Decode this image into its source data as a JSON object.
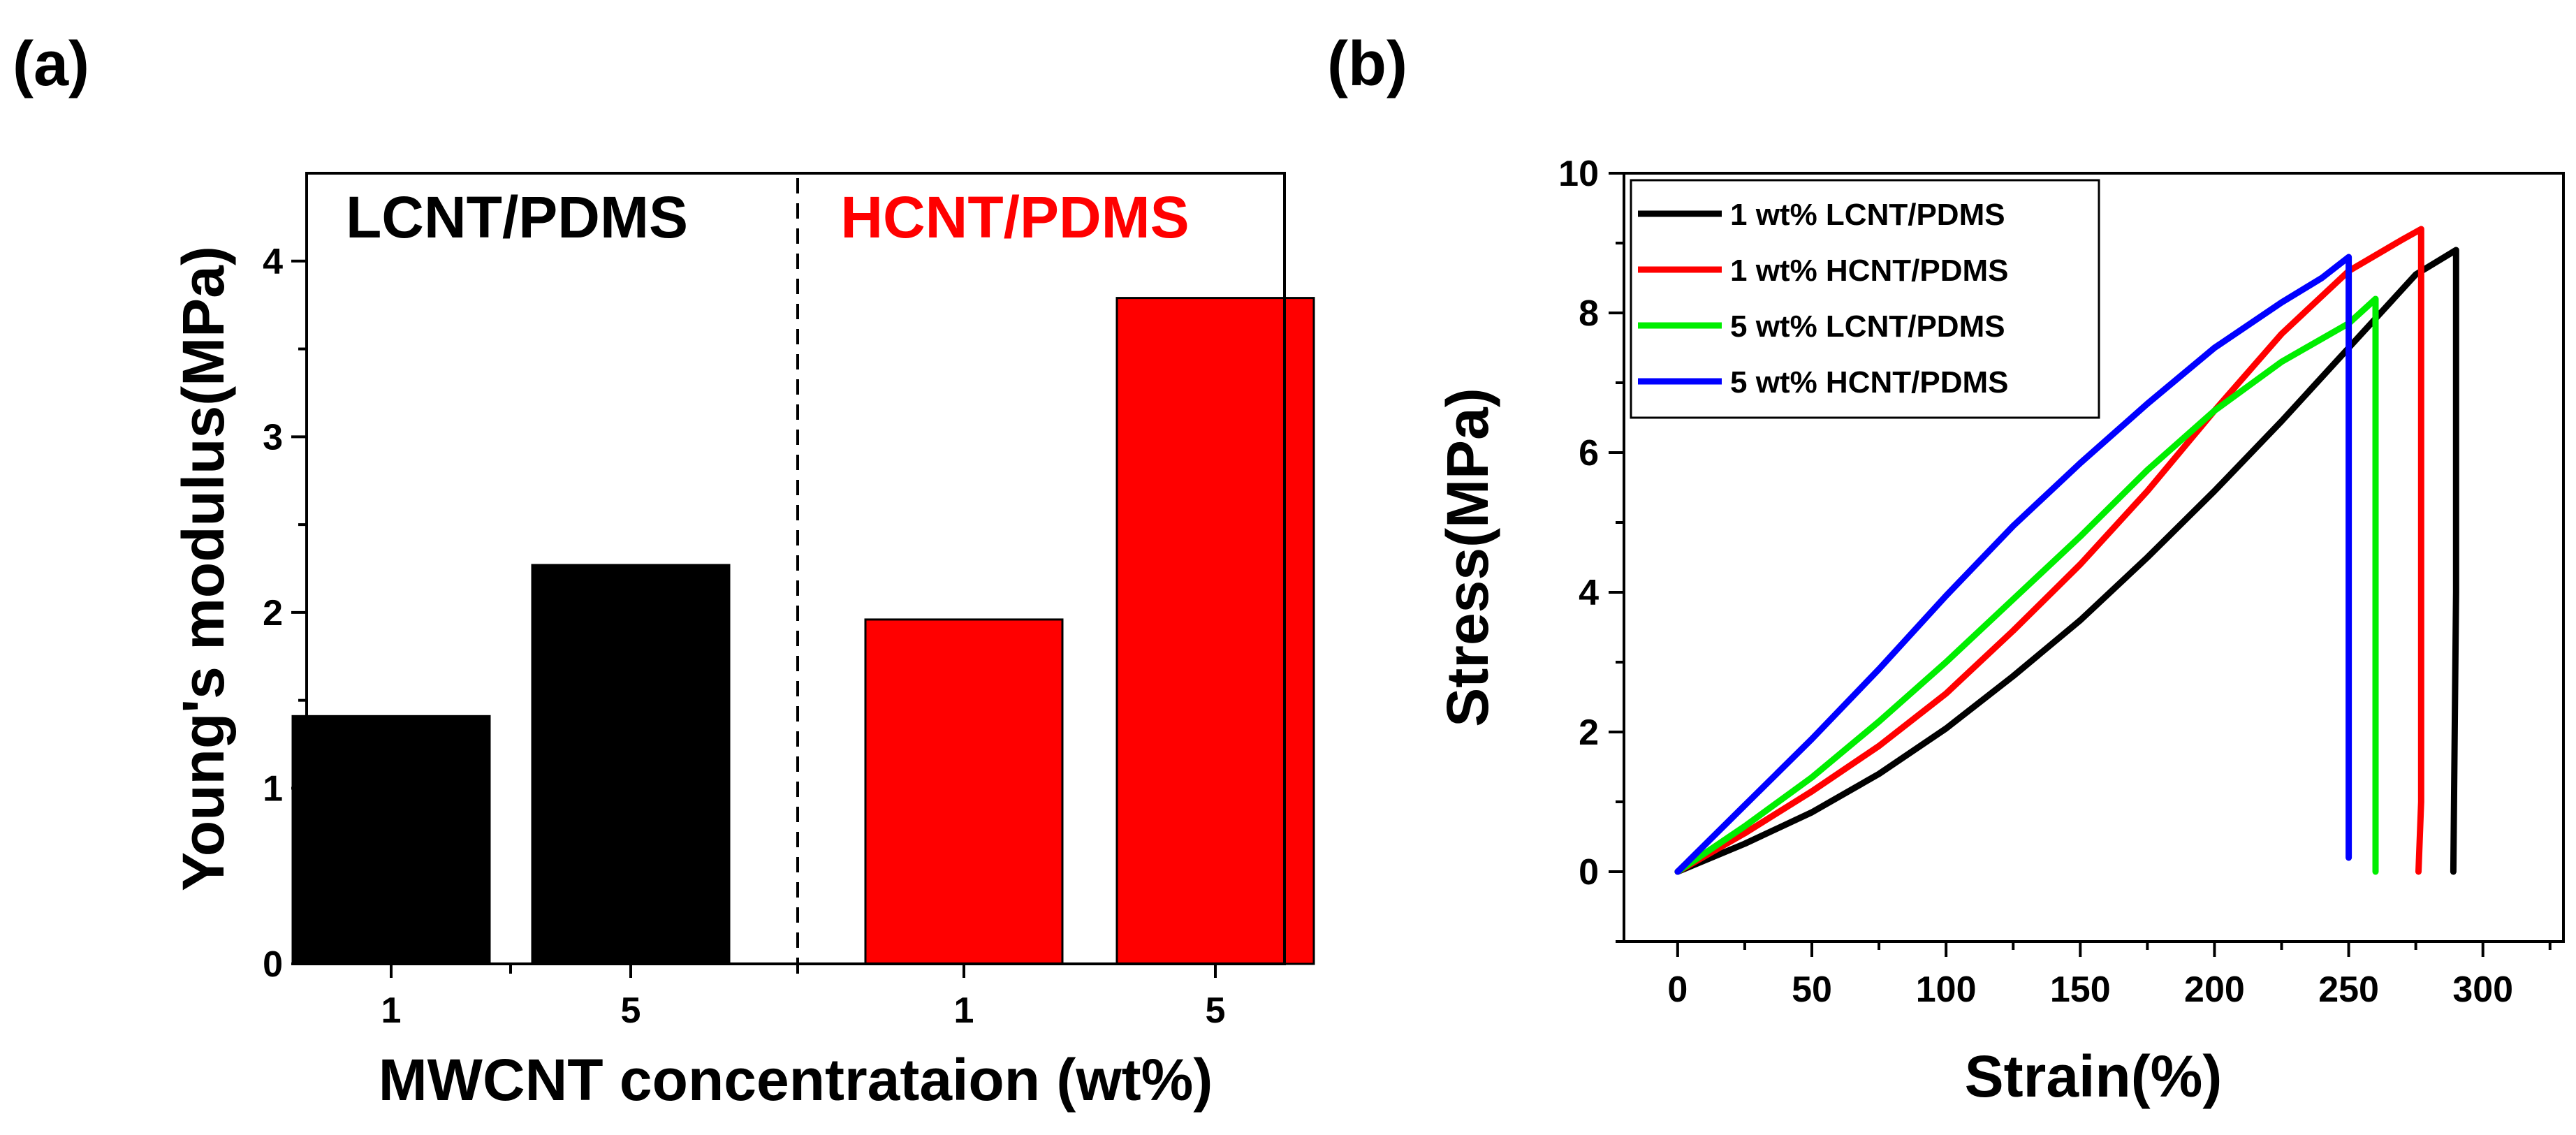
{
  "figure": {
    "panel_a_label": "(a)",
    "panel_b_label": "(b)"
  },
  "chart_data": [
    {
      "type": "bar",
      "panel": "(a)",
      "xlabel": "MWCNT concentrataion (wt%)",
      "ylabel": "Young's modulus(MPa)",
      "ylim": [
        0,
        4.5
      ],
      "yticks": [
        "0",
        "1",
        "2",
        "3",
        "4"
      ],
      "categories": [
        "1",
        "5",
        "1",
        "5"
      ],
      "groups": [
        {
          "name": "LCNT/PDMS",
          "color": "#000000"
        },
        {
          "name": "HCNT/PDMS",
          "color": "#ff0000"
        }
      ],
      "bars": [
        {
          "category": "1",
          "group": "LCNT/PDMS",
          "value": 1.41,
          "color": "#000000"
        },
        {
          "category": "5",
          "group": "LCNT/PDMS",
          "value": 2.27,
          "color": "#000000"
        },
        {
          "category": "1",
          "group": "HCNT/PDMS",
          "value": 1.96,
          "color": "#ff0000"
        },
        {
          "category": "5",
          "group": "HCNT/PDMS",
          "value": 3.79,
          "color": "#ff0000"
        }
      ],
      "divider": "dashed line between groups"
    },
    {
      "type": "line",
      "panel": "(b)",
      "xlabel": "Strain(%)",
      "ylabel": "Stress(MPa)",
      "xlim": [
        -20,
        330
      ],
      "ylim": [
        -1,
        10
      ],
      "xticks": [
        "0",
        "50",
        "100",
        "150",
        "200",
        "250",
        "300"
      ],
      "yticks": [
        "0",
        "2",
        "4",
        "6",
        "8",
        "10"
      ],
      "legend_position": "top-left",
      "series": [
        {
          "name": "1 wt% LCNT/PDMS",
          "color": "#000000",
          "x": [
            0,
            25,
            50,
            75,
            100,
            125,
            150,
            175,
            200,
            225,
            250,
            275,
            290,
            290,
            289
          ],
          "y": [
            0,
            0.4,
            0.85,
            1.4,
            2.05,
            2.8,
            3.6,
            4.5,
            5.45,
            6.45,
            7.5,
            8.55,
            8.9,
            4.0,
            0
          ]
        },
        {
          "name": "1 wt% HCNT/PDMS",
          "color": "#ff0000",
          "x": [
            0,
            25,
            50,
            75,
            100,
            125,
            150,
            175,
            200,
            225,
            250,
            270,
            277,
            277,
            276
          ],
          "y": [
            0,
            0.55,
            1.15,
            1.8,
            2.55,
            3.45,
            4.4,
            5.45,
            6.6,
            7.7,
            8.6,
            9.05,
            9.2,
            1.0,
            0
          ]
        },
        {
          "name": "5 wt% LCNT/PDMS",
          "color": "#00ee00",
          "x": [
            0,
            25,
            50,
            75,
            100,
            125,
            150,
            175,
            200,
            225,
            250,
            260,
            260,
            260
          ],
          "y": [
            0,
            0.65,
            1.35,
            2.15,
            3.0,
            3.9,
            4.8,
            5.75,
            6.6,
            7.3,
            7.85,
            8.2,
            4.0,
            0
          ]
        },
        {
          "name": "5 wt% HCNT/PDMS",
          "color": "#0000ff",
          "x": [
            0,
            25,
            50,
            75,
            100,
            125,
            150,
            175,
            200,
            225,
            240,
            250,
            250,
            250
          ],
          "y": [
            0,
            0.95,
            1.9,
            2.9,
            3.95,
            4.95,
            5.85,
            6.7,
            7.5,
            8.15,
            8.5,
            8.8,
            4.0,
            0.2
          ]
        }
      ]
    }
  ]
}
